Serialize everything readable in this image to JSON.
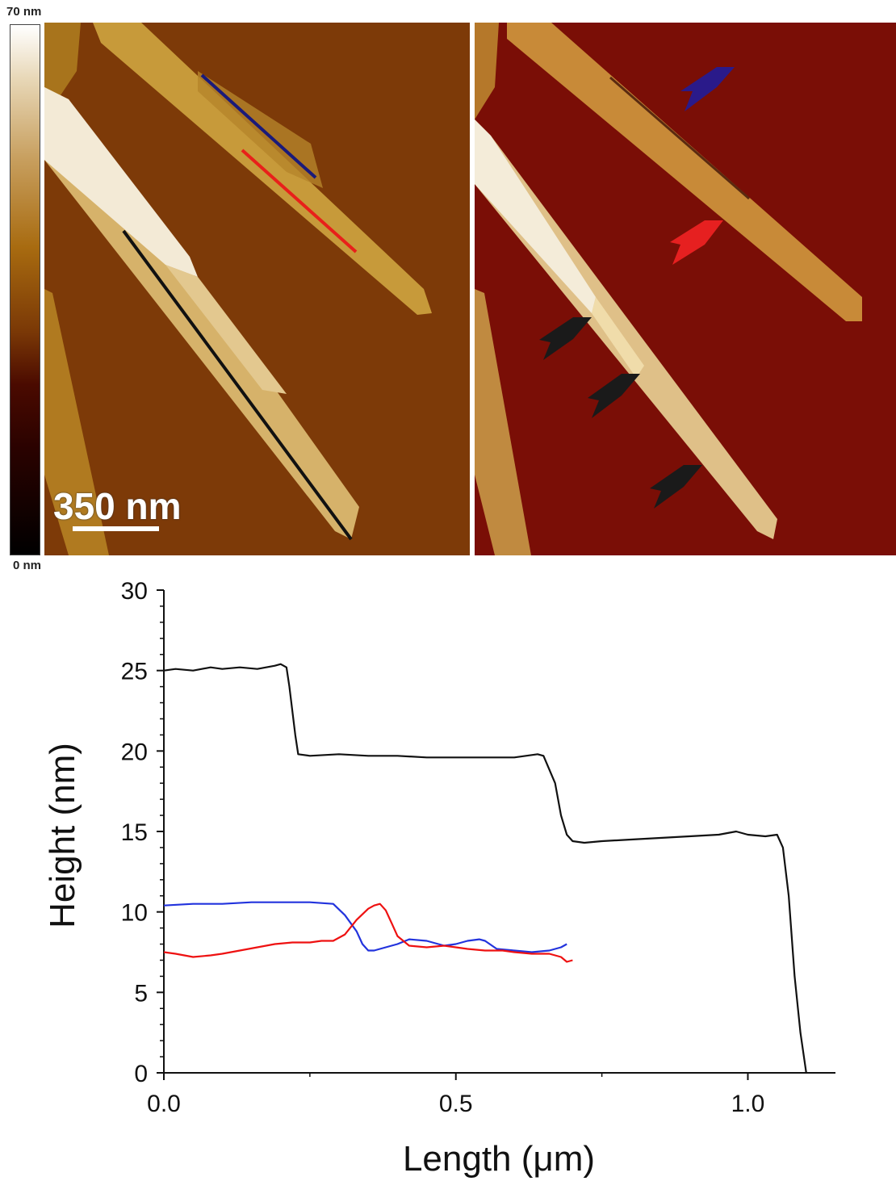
{
  "colorbar": {
    "max_label": "70 nm",
    "min_label": "0 nm"
  },
  "scale_bar": {
    "label": "350 nm"
  },
  "panels": [
    {
      "kind": "height",
      "profile_line_colors": [
        "#1a1a7a",
        "#e8201a",
        "#111111"
      ]
    },
    {
      "kind": "amplitude",
      "arrow_colors": [
        "#2a1a8a",
        "#e62020",
        "#1a1a1a",
        "#1a1a1a",
        "#1a1a1a"
      ]
    }
  ],
  "chart_data": {
    "type": "line",
    "title": "",
    "xlabel": "Length (μm)",
    "ylabel": "Height (nm)",
    "xlim": [
      0.0,
      1.15
    ],
    "ylim": [
      0,
      30
    ],
    "xticks": [
      "0.0",
      "0.5",
      "1.0"
    ],
    "yticks": [
      "0",
      "5",
      "10",
      "15",
      "20",
      "25",
      "30"
    ],
    "series": [
      {
        "color": "#111111",
        "x": [
          0.0,
          0.02,
          0.05,
          0.08,
          0.1,
          0.13,
          0.16,
          0.19,
          0.2,
          0.21,
          0.215,
          0.225,
          0.23,
          0.25,
          0.3,
          0.35,
          0.4,
          0.45,
          0.5,
          0.55,
          0.6,
          0.64,
          0.65,
          0.67,
          0.68,
          0.69,
          0.7,
          0.72,
          0.75,
          0.8,
          0.85,
          0.9,
          0.95,
          0.98,
          1.0,
          1.03,
          1.05,
          1.06,
          1.07,
          1.08,
          1.09,
          1.1
        ],
        "y": [
          25.0,
          25.1,
          25.0,
          25.2,
          25.1,
          25.2,
          25.1,
          25.3,
          25.4,
          25.2,
          24.0,
          21.0,
          19.8,
          19.7,
          19.8,
          19.7,
          19.7,
          19.6,
          19.6,
          19.6,
          19.6,
          19.8,
          19.7,
          18.0,
          16.0,
          14.8,
          14.4,
          14.3,
          14.4,
          14.5,
          14.6,
          14.7,
          14.8,
          15.0,
          14.8,
          14.7,
          14.8,
          14.0,
          11.0,
          6.0,
          2.5,
          0.0
        ]
      },
      {
        "color": "#2233dd",
        "x": [
          0.0,
          0.05,
          0.1,
          0.15,
          0.2,
          0.25,
          0.29,
          0.31,
          0.33,
          0.34,
          0.35,
          0.36,
          0.38,
          0.4,
          0.42,
          0.45,
          0.48,
          0.5,
          0.52,
          0.54,
          0.55,
          0.57,
          0.6,
          0.63,
          0.66,
          0.68,
          0.69
        ],
        "y": [
          10.4,
          10.5,
          10.5,
          10.6,
          10.6,
          10.6,
          10.5,
          9.8,
          8.8,
          8.0,
          7.6,
          7.6,
          7.8,
          8.0,
          8.3,
          8.2,
          7.9,
          8.0,
          8.2,
          8.3,
          8.2,
          7.7,
          7.6,
          7.5,
          7.6,
          7.8,
          8.0
        ]
      },
      {
        "color": "#ee1111",
        "x": [
          0.0,
          0.02,
          0.05,
          0.08,
          0.1,
          0.13,
          0.16,
          0.19,
          0.22,
          0.25,
          0.27,
          0.29,
          0.31,
          0.33,
          0.35,
          0.36,
          0.37,
          0.38,
          0.39,
          0.4,
          0.42,
          0.45,
          0.48,
          0.5,
          0.52,
          0.55,
          0.58,
          0.6,
          0.63,
          0.66,
          0.68,
          0.69,
          0.7
        ],
        "y": [
          7.5,
          7.4,
          7.2,
          7.3,
          7.4,
          7.6,
          7.8,
          8.0,
          8.1,
          8.1,
          8.2,
          8.2,
          8.6,
          9.5,
          10.2,
          10.4,
          10.5,
          10.1,
          9.3,
          8.5,
          7.9,
          7.8,
          7.9,
          7.8,
          7.7,
          7.6,
          7.6,
          7.5,
          7.4,
          7.4,
          7.2,
          6.9,
          7.0
        ]
      }
    ]
  }
}
